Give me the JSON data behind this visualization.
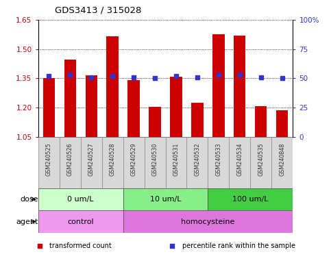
{
  "title": "GDS3413 / 315028",
  "samples": [
    "GSM240525",
    "GSM240526",
    "GSM240527",
    "GSM240528",
    "GSM240529",
    "GSM240530",
    "GSM240531",
    "GSM240532",
    "GSM240533",
    "GSM240534",
    "GSM240535",
    "GSM240848"
  ],
  "transformed_count": [
    1.352,
    1.445,
    1.365,
    1.565,
    1.342,
    1.205,
    1.358,
    1.225,
    1.575,
    1.57,
    1.208,
    1.185
  ],
  "percentile_rank": [
    52,
    53,
    51,
    52,
    51,
    50,
    52,
    51,
    53,
    53,
    51,
    50
  ],
  "ylim_left": [
    1.05,
    1.65
  ],
  "ylim_right": [
    0,
    100
  ],
  "yticks_left": [
    1.05,
    1.2,
    1.35,
    1.5,
    1.65
  ],
  "yticks_right": [
    0,
    25,
    50,
    75,
    100
  ],
  "ytick_labels_right": [
    "0",
    "25",
    "50",
    "75",
    "100%"
  ],
  "bar_color": "#cc0000",
  "dot_color": "#3333cc",
  "baseline": 1.05,
  "dose_groups": [
    {
      "label": "0 um/L",
      "start": 0,
      "end": 4,
      "color": "#ccffcc"
    },
    {
      "label": "10 um/L",
      "start": 4,
      "end": 8,
      "color": "#88ee88"
    },
    {
      "label": "100 um/L",
      "start": 8,
      "end": 12,
      "color": "#44cc44"
    }
  ],
  "agent_groups": [
    {
      "label": "control",
      "start": 0,
      "end": 4,
      "color": "#ee99ee"
    },
    {
      "label": "homocysteine",
      "start": 4,
      "end": 12,
      "color": "#dd77dd"
    }
  ],
  "dose_label": "dose",
  "agent_label": "agent",
  "legend_items": [
    {
      "color": "#cc0000",
      "label": "transformed count",
      "marker": "s"
    },
    {
      "color": "#3333cc",
      "label": "percentile rank within the sample",
      "marker": "s"
    }
  ],
  "background_color": "#ffffff",
  "tick_label_color_left": "#cc0000",
  "tick_label_color_right": "#3333cc",
  "sample_box_color": "#d8d8d8"
}
